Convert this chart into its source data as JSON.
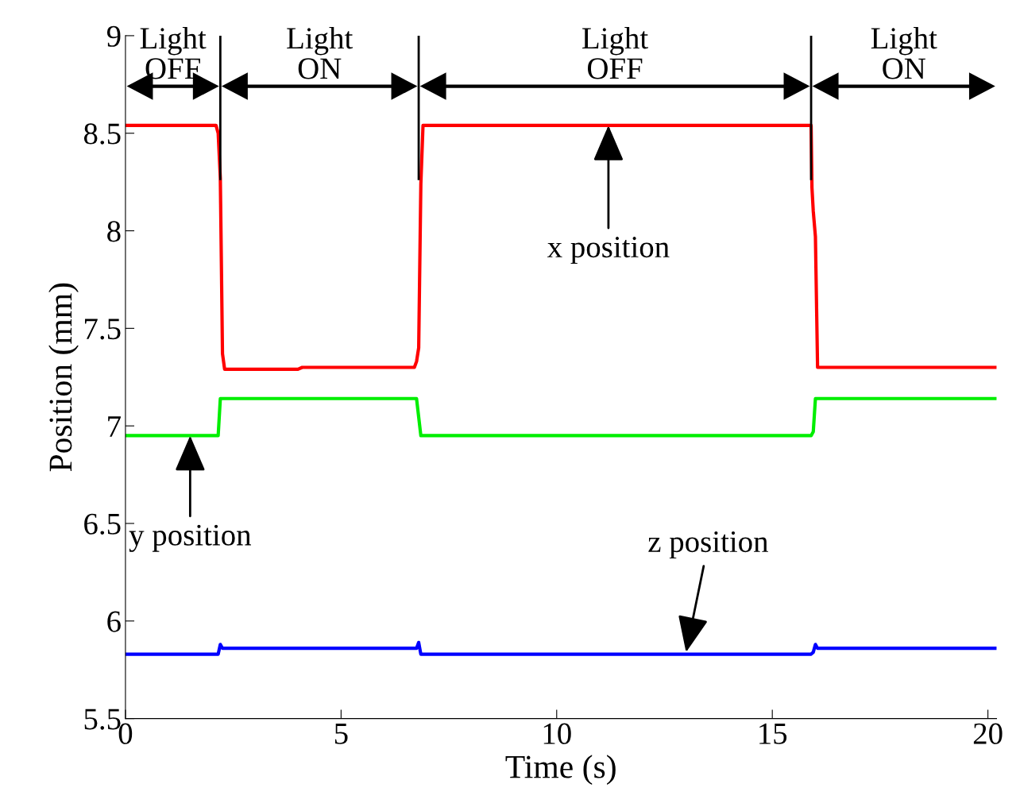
{
  "chart_data": {
    "type": "line",
    "xlabel": "Time (s)",
    "ylabel": "Position (mm)",
    "xlim": [
      0,
      20.2
    ],
    "ylim": [
      5.5,
      9
    ],
    "xticks": [
      0,
      5,
      10,
      15,
      20
    ],
    "yticks": [
      5.5,
      6,
      6.5,
      7,
      7.5,
      8,
      8.5,
      9
    ],
    "grid": false,
    "legend": false,
    "line_style": "solid",
    "marker": "none",
    "series": [
      {
        "color": "#ff0000",
        "x": [
          0,
          2.1,
          2.15,
          2.2,
          2.25,
          2.3,
          4,
          4.1,
          6.7,
          6.75,
          6.8,
          6.85,
          6.9,
          15.9,
          15.92,
          15.95,
          16.0,
          16.05,
          20.2
        ],
        "values": [
          8.54,
          8.54,
          8.5,
          8.27,
          7.37,
          7.29,
          7.29,
          7.3,
          7.3,
          7.33,
          7.4,
          8.24,
          8.54,
          8.54,
          8.22,
          8.1,
          7.97,
          7.3,
          7.3
        ]
      },
      {
        "color": "#00ee00",
        "x": [
          0,
          2.15,
          2.2,
          6.75,
          6.85,
          15.9,
          15.95,
          16.0,
          20.2
        ],
        "values": [
          6.95,
          6.95,
          7.14,
          7.14,
          6.95,
          6.95,
          6.97,
          7.14,
          7.14
        ]
      },
      {
        "color": "#0000ff",
        "x": [
          0,
          2.15,
          2.2,
          2.25,
          6.75,
          6.8,
          6.85,
          15.9,
          15.95,
          16.0,
          16.05,
          20.2
        ],
        "values": [
          5.83,
          5.83,
          5.88,
          5.86,
          5.86,
          5.89,
          5.83,
          5.83,
          5.84,
          5.88,
          5.86,
          5.86
        ]
      }
    ],
    "ref_lines": [
      {
        "axis": "x",
        "value": 2.2,
        "color": "#000000"
      },
      {
        "axis": "x",
        "value": 6.8,
        "color": "#000000"
      },
      {
        "axis": "x",
        "value": 15.9,
        "color": "#000000"
      }
    ],
    "annotations": [
      "Light\nOFF",
      "Light\nON",
      "Light\nOFF",
      "Light\nON",
      {
        "text": "x position",
        "x": 11.2,
        "y": 8.54
      },
      {
        "text": "y position",
        "x": 1.5,
        "y": 6.95
      },
      {
        "text": "z position",
        "x": 13,
        "y": 5.84
      }
    ]
  }
}
